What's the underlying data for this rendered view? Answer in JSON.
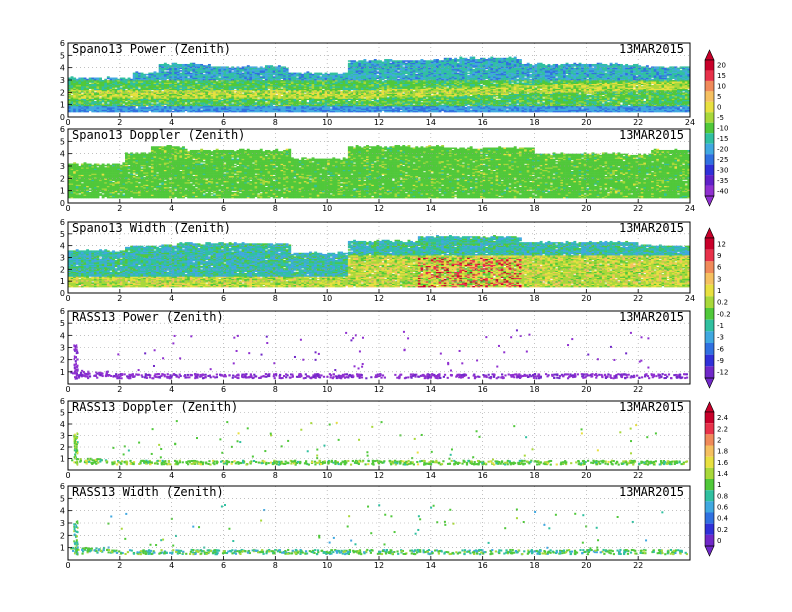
{
  "chart_data": [
    {
      "type": "heatmap",
      "title": "Spano13 Power (Zenith)",
      "date": "13MAR2015",
      "x_ticks": [
        "0",
        "2",
        "4",
        "6",
        "8",
        "10",
        "12",
        "14",
        "16",
        "18",
        "20",
        "22",
        "24"
      ],
      "y_ticks": [
        "0",
        "1",
        "2",
        "3",
        "4",
        "5",
        "6"
      ],
      "xlim": [
        0,
        24
      ],
      "ylim": [
        0,
        6
      ],
      "grid": true,
      "render": "power",
      "colorbar_labels": [
        "20",
        "15",
        "10",
        "5",
        "0",
        "-5",
        "-10",
        "-15",
        "-20",
        "-25",
        "-30",
        "-35",
        "-40"
      ]
    },
    {
      "type": "heatmap",
      "title": "Spano13 Doppler (Zenith)",
      "date": "13MAR2015",
      "x_ticks": [
        "0",
        "2",
        "4",
        "6",
        "8",
        "10",
        "12",
        "14",
        "16",
        "18",
        "20",
        "22",
        "24"
      ],
      "y_ticks": [
        "0",
        "1",
        "2",
        "3",
        "4",
        "5",
        "6"
      ],
      "xlim": [
        0,
        24
      ],
      "ylim": [
        0,
        6
      ],
      "grid": true,
      "render": "doppler"
    },
    {
      "type": "heatmap",
      "title": "Spano13 Width (Zenith)",
      "date": "13MAR2015",
      "x_ticks": [
        "0",
        "2",
        "4",
        "6",
        "8",
        "10",
        "12",
        "14",
        "16",
        "18",
        "20",
        "22",
        "24"
      ],
      "y_ticks": [
        "0",
        "1",
        "2",
        "3",
        "4",
        "5",
        "6"
      ],
      "xlim": [
        0,
        24
      ],
      "ylim": [
        0,
        6
      ],
      "grid": true,
      "render": "width",
      "colorbar_labels": [
        "12",
        "9",
        "6",
        "3",
        "1",
        "0.2",
        "-0.2",
        "-1",
        "-3",
        "-6",
        "-9",
        "-12"
      ]
    },
    {
      "type": "scatter",
      "title": "RASS13 Power (Zenith)",
      "date": "13MAR2015",
      "x_ticks": [
        "0",
        "2",
        "4",
        "6",
        "8",
        "10",
        "12",
        "14",
        "16",
        "18",
        "20",
        "22"
      ],
      "y_ticks": [
        "1",
        "2",
        "3",
        "4",
        "5",
        "6"
      ],
      "xlim": [
        0,
        24
      ],
      "ylim": [
        0,
        6
      ],
      "grid": true,
      "render": "rass_power"
    },
    {
      "type": "scatter",
      "title": "RASS13 Doppler (Zenith)",
      "date": "13MAR2015",
      "x_ticks": [
        "0",
        "2",
        "4",
        "6",
        "8",
        "10",
        "12",
        "14",
        "16",
        "18",
        "20",
        "22"
      ],
      "y_ticks": [
        "1",
        "2",
        "3",
        "4",
        "5",
        "6"
      ],
      "xlim": [
        0,
        24
      ],
      "ylim": [
        0,
        6
      ],
      "grid": true,
      "render": "rass_doppler",
      "colorbar_labels": [
        "2.4",
        "2.2",
        "2",
        "1.8",
        "1.6",
        "1.4",
        "1",
        "0.8",
        "0.6",
        "0.4",
        "0.2",
        "0"
      ]
    },
    {
      "type": "scatter",
      "title": "RASS13 Width (Zenith)",
      "date": "13MAR2015",
      "x_ticks": [
        "0",
        "2",
        "4",
        "6",
        "8",
        "10",
        "12",
        "14",
        "16",
        "18",
        "20",
        "22"
      ],
      "y_ticks": [
        "1",
        "2",
        "3",
        "4",
        "5",
        "6"
      ],
      "xlim": [
        0,
        24
      ],
      "ylim": [
        0,
        6
      ],
      "grid": true,
      "render": "rass_width"
    }
  ],
  "colorbars": [
    {
      "id": "cb-power",
      "labels": [
        "20",
        "15",
        "10",
        "5",
        "0",
        "-5",
        "-10",
        "-15",
        "-20",
        "-25",
        "-30",
        "-35",
        "-40"
      ],
      "colors": [
        "#c8002a",
        "#e8324a",
        "#f08a5a",
        "#f5c060",
        "#e8e040",
        "#a8d83a",
        "#50c83a",
        "#30c0a0",
        "#40a8e0",
        "#3070e0",
        "#3030d8",
        "#6020c8",
        "#9030d0"
      ]
    },
    {
      "id": "cb-width",
      "labels": [
        "12",
        "9",
        "6",
        "3",
        "1",
        "0.2",
        "-0.2",
        "-1",
        "-3",
        "-6",
        "-9",
        "-12"
      ],
      "colors": [
        "#c8002a",
        "#e8324a",
        "#f08a5a",
        "#f5c060",
        "#e8e040",
        "#a8d83a",
        "#50c83a",
        "#30c0a0",
        "#40a8e0",
        "#3070e0",
        "#3030d8",
        "#7028c8"
      ]
    },
    {
      "id": "cb-rass",
      "labels": [
        "2.4",
        "2.2",
        "2",
        "1.8",
        "1.6",
        "1.4",
        "1",
        "0.8",
        "0.6",
        "0.4",
        "0.2",
        "0"
      ],
      "colors": [
        "#c8002a",
        "#e8324a",
        "#f08a5a",
        "#f5c060",
        "#e8e040",
        "#a8d83a",
        "#50c83a",
        "#30c0a0",
        "#40a8e0",
        "#3070e0",
        "#3030d8",
        "#7028c8"
      ]
    }
  ]
}
